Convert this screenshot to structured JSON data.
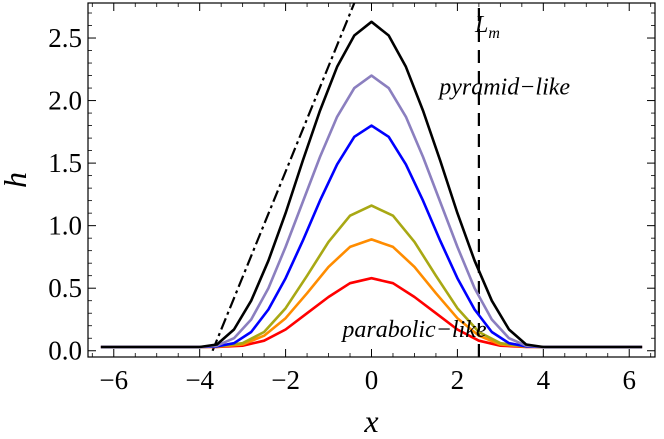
{
  "chart_data": {
    "type": "line",
    "title": "",
    "xlabel": "x",
    "ylabel": "h",
    "xlim": [
      -6.6,
      6.6
    ],
    "ylim": [
      -0.05,
      2.78
    ],
    "x_ticks": [
      -6,
      -4,
      -2,
      0,
      2,
      4,
      6
    ],
    "x_tick_labels": [
      "−6",
      "−4",
      "−2",
      "0",
      "2",
      "4",
      "6"
    ],
    "y_ticks": [
      0.0,
      0.5,
      1.0,
      1.5,
      2.0,
      2.5
    ],
    "y_tick_labels": [
      "0.0",
      "0.5",
      "1.0",
      "1.5",
      "2.0",
      "2.5"
    ],
    "grid": false,
    "legend": "none",
    "series": [
      {
        "color": "#ff0000",
        "points": [
          [
            -6.3,
            0.03
          ],
          [
            -4.0,
            0.03
          ],
          [
            -3.6,
            0.031
          ],
          [
            -3.0,
            0.04
          ],
          [
            -2.5,
            0.08
          ],
          [
            -2.0,
            0.17
          ],
          [
            -1.5,
            0.3
          ],
          [
            -1.0,
            0.43
          ],
          [
            -0.5,
            0.54
          ],
          [
            0.0,
            0.58
          ],
          [
            0.5,
            0.54
          ],
          [
            1.0,
            0.43
          ],
          [
            1.5,
            0.3
          ],
          [
            2.0,
            0.17
          ],
          [
            2.5,
            0.08
          ],
          [
            3.0,
            0.04
          ],
          [
            3.6,
            0.031
          ],
          [
            4.0,
            0.03
          ],
          [
            6.3,
            0.03
          ]
        ]
      },
      {
        "color": "#ff8c00",
        "points": [
          [
            -6.3,
            0.03
          ],
          [
            -4.0,
            0.03
          ],
          [
            -3.6,
            0.032
          ],
          [
            -3.0,
            0.05
          ],
          [
            -2.5,
            0.12
          ],
          [
            -2.0,
            0.26
          ],
          [
            -1.5,
            0.46
          ],
          [
            -1.0,
            0.67
          ],
          [
            -0.5,
            0.83
          ],
          [
            0.0,
            0.89
          ],
          [
            0.5,
            0.83
          ],
          [
            1.0,
            0.67
          ],
          [
            1.5,
            0.46
          ],
          [
            2.0,
            0.26
          ],
          [
            2.5,
            0.12
          ],
          [
            3.0,
            0.05
          ],
          [
            3.6,
            0.032
          ],
          [
            4.0,
            0.03
          ],
          [
            6.3,
            0.03
          ]
        ]
      },
      {
        "color": "#a8a814",
        "points": [
          [
            -6.3,
            0.03
          ],
          [
            -4.0,
            0.03
          ],
          [
            -3.6,
            0.033
          ],
          [
            -3.0,
            0.06
          ],
          [
            -2.5,
            0.15
          ],
          [
            -2.0,
            0.34
          ],
          [
            -1.5,
            0.6
          ],
          [
            -1.0,
            0.87
          ],
          [
            -0.5,
            1.08
          ],
          [
            0.0,
            1.16
          ],
          [
            0.5,
            1.08
          ],
          [
            1.0,
            0.87
          ],
          [
            1.5,
            0.6
          ],
          [
            2.0,
            0.34
          ],
          [
            2.5,
            0.15
          ],
          [
            3.0,
            0.06
          ],
          [
            3.6,
            0.033
          ],
          [
            4.0,
            0.03
          ],
          [
            6.3,
            0.03
          ]
        ]
      },
      {
        "color": "#0000ff",
        "points": [
          [
            -6.3,
            0.03
          ],
          [
            -4.0,
            0.03
          ],
          [
            -3.6,
            0.035
          ],
          [
            -3.2,
            0.06
          ],
          [
            -2.8,
            0.15
          ],
          [
            -2.4,
            0.33
          ],
          [
            -2.0,
            0.58
          ],
          [
            -1.6,
            0.88
          ],
          [
            -1.2,
            1.2
          ],
          [
            -0.8,
            1.49
          ],
          [
            -0.4,
            1.71
          ],
          [
            0.0,
            1.8
          ],
          [
            0.4,
            1.71
          ],
          [
            0.8,
            1.49
          ],
          [
            1.2,
            1.2
          ],
          [
            1.6,
            0.88
          ],
          [
            2.0,
            0.58
          ],
          [
            2.4,
            0.33
          ],
          [
            2.8,
            0.15
          ],
          [
            3.2,
            0.06
          ],
          [
            3.6,
            0.035
          ],
          [
            4.0,
            0.03
          ],
          [
            6.3,
            0.03
          ]
        ]
      },
      {
        "color": "#8b7fbf",
        "points": [
          [
            -6.3,
            0.03
          ],
          [
            -4.0,
            0.03
          ],
          [
            -3.6,
            0.04
          ],
          [
            -3.2,
            0.1
          ],
          [
            -2.8,
            0.25
          ],
          [
            -2.4,
            0.5
          ],
          [
            -2.0,
            0.83
          ],
          [
            -1.6,
            1.19
          ],
          [
            -1.2,
            1.55
          ],
          [
            -0.8,
            1.87
          ],
          [
            -0.4,
            2.1
          ],
          [
            0.0,
            2.2
          ],
          [
            0.4,
            2.1
          ],
          [
            0.8,
            1.87
          ],
          [
            1.2,
            1.55
          ],
          [
            1.6,
            1.19
          ],
          [
            2.0,
            0.83
          ],
          [
            2.4,
            0.5
          ],
          [
            2.8,
            0.25
          ],
          [
            3.2,
            0.1
          ],
          [
            3.6,
            0.04
          ],
          [
            4.0,
            0.03
          ],
          [
            6.3,
            0.03
          ]
        ]
      },
      {
        "color": "#000000",
        "points": [
          [
            -6.3,
            0.03
          ],
          [
            -4.0,
            0.03
          ],
          [
            -3.6,
            0.05
          ],
          [
            -3.2,
            0.17
          ],
          [
            -2.8,
            0.4
          ],
          [
            -2.4,
            0.72
          ],
          [
            -2.0,
            1.1
          ],
          [
            -1.6,
            1.52
          ],
          [
            -1.2,
            1.92
          ],
          [
            -0.8,
            2.27
          ],
          [
            -0.4,
            2.52
          ],
          [
            0.0,
            2.63
          ],
          [
            0.4,
            2.52
          ],
          [
            0.8,
            2.27
          ],
          [
            1.2,
            1.92
          ],
          [
            1.6,
            1.52
          ],
          [
            2.0,
            1.1
          ],
          [
            2.4,
            0.72
          ],
          [
            2.8,
            0.4
          ],
          [
            3.2,
            0.17
          ],
          [
            3.6,
            0.05
          ],
          [
            4.0,
            0.03
          ],
          [
            6.3,
            0.03
          ]
        ]
      }
    ],
    "reference_lines": [
      {
        "style": "dash-dot",
        "color": "#000000",
        "points": [
          [
            -3.7,
            0.0
          ],
          [
            -0.4,
            2.78
          ]
        ]
      },
      {
        "style": "dashed",
        "color": "#000000",
        "points": [
          [
            2.5,
            -0.05
          ],
          [
            2.5,
            2.78
          ]
        ]
      }
    ],
    "annotations": [
      {
        "text": "L",
        "subscript": "m",
        "x": 2.7,
        "y": 2.55
      },
      {
        "text": "pyramid−like",
        "x": 3.1,
        "y": 2.05
      },
      {
        "text": "parabolic−like",
        "x": 1.0,
        "y": 0.11
      }
    ]
  }
}
